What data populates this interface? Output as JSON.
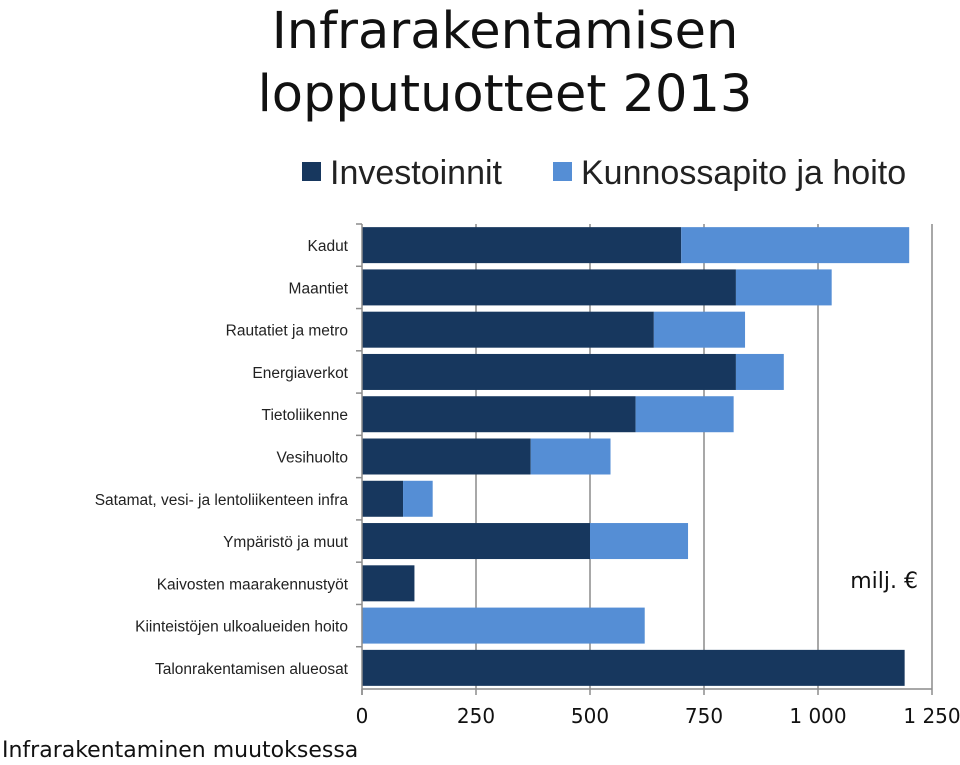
{
  "slide": {
    "title": "Infrarakentamisen lopputuotteet 2013",
    "footer": "Infrarakentaminen muutoksessa"
  },
  "chart_data": {
    "type": "bar",
    "orientation": "horizontal",
    "stacked": true,
    "title": "Infrarakentamisen lopputuotteet 2013",
    "unit_label": "milj. €",
    "categories": [
      "Kadut",
      "Maantiet",
      "Rautatiet ja metro",
      "Energiaverkot",
      "Tietoliikenne",
      "Vesihuolto",
      "Satamat, vesi- ja lentoliikenteen infra",
      "Ympäristö ja muut",
      "Kaivosten maarakennustyöt",
      "Kiinteistöjen ulkoalueiden hoito",
      "Talonrakentamisen alueosat"
    ],
    "series": [
      {
        "name": "Investoinnit",
        "color": "#17375e",
        "values": [
          700,
          820,
          640,
          820,
          600,
          370,
          90,
          500,
          115,
          0,
          1190
        ]
      },
      {
        "name": "Kunnossapito ja hoito",
        "color": "#558ed5",
        "values": [
          500,
          210,
          200,
          105,
          215,
          175,
          65,
          215,
          0,
          620,
          0
        ]
      }
    ],
    "xlim": [
      0,
      1250
    ],
    "xticks": [
      0,
      250,
      500,
      750,
      1000,
      1250
    ],
    "xtick_labels": [
      "0",
      "250",
      "500",
      "750",
      "1 000",
      "1 250"
    ],
    "grid": "vertical",
    "legend": "top"
  }
}
